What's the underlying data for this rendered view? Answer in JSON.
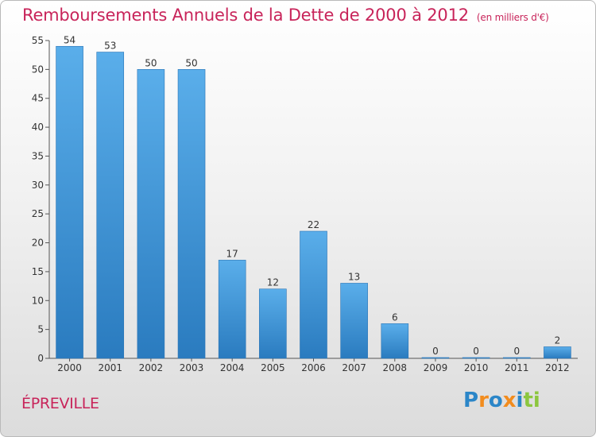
{
  "title": "Remboursements Annuels de la Dette de 2000 à 2012",
  "subtitle": "(en milliers d'€)",
  "commune": "ÉPREVILLE",
  "logo": {
    "text": "Proxiti",
    "letters": [
      "P",
      "r",
      "o",
      "x",
      "i",
      "t",
      "i"
    ],
    "colors": [
      "#2b86c8",
      "#f28c1e",
      "#2b86c8",
      "#f28c1e",
      "#2b86c8",
      "#8cc63f",
      "#8cc63f"
    ]
  },
  "colors": {
    "bar": "#4a9fdf",
    "bar_dark": "#2e7fc2",
    "accent": "#c8245a"
  },
  "chart_data": {
    "type": "bar",
    "title": "Remboursements Annuels de la Dette de 2000 à 2012",
    "subtitle": "(en milliers d'€)",
    "categories": [
      "2000",
      "2001",
      "2002",
      "2003",
      "2004",
      "2005",
      "2006",
      "2007",
      "2008",
      "2009",
      "2010",
      "2011",
      "2012"
    ],
    "values": [
      54,
      53,
      50,
      50,
      17,
      12,
      22,
      13,
      6,
      0,
      0,
      0,
      2
    ],
    "labels": [
      "54",
      "53",
      "50",
      "50",
      "17",
      "12",
      "22",
      "13",
      "6",
      "0",
      "0",
      "0",
      "2"
    ],
    "ylim": [
      0,
      55
    ],
    "yticks": [
      0,
      5,
      10,
      15,
      20,
      25,
      30,
      35,
      40,
      45,
      50,
      55
    ],
    "grid": false,
    "xlabel": "",
    "ylabel": ""
  }
}
